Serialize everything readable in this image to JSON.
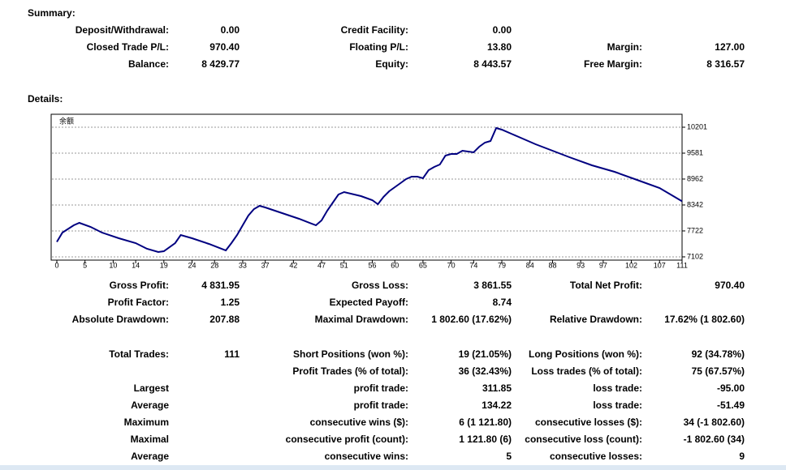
{
  "summary": {
    "title": "Summary:",
    "rows": [
      [
        "Deposit/Withdrawal:",
        "0.00",
        "Credit Facility:",
        "0.00",
        null,
        null
      ],
      [
        "Closed Trade P/L:",
        "970.40",
        "Floating P/L:",
        "13.80",
        "Margin:",
        "127.00"
      ],
      [
        "Balance:",
        "8 429.77",
        "Equity:",
        "8 443.57",
        "Free Margin:",
        "8 316.57"
      ]
    ]
  },
  "details": {
    "title": "Details:",
    "groups": [
      [
        [
          "Gross Profit:",
          "4 831.95",
          "Gross Loss:",
          "3 861.55",
          "Total Net Profit:",
          "970.40"
        ],
        [
          "Profit Factor:",
          "1.25",
          "Expected Payoff:",
          "8.74",
          null,
          null
        ],
        [
          "Absolute Drawdown:",
          "207.88",
          "Maximal Drawdown:",
          "1 802.60 (17.62%)",
          "Relative Drawdown:",
          "17.62% (1 802.60)"
        ]
      ],
      [
        [
          "Total Trades:",
          "111",
          "Short Positions (won %):",
          "19 (21.05%)",
          "Long Positions (won %):",
          "92 (34.78%)"
        ],
        [
          null,
          null,
          "Profit Trades (% of total):",
          "36 (32.43%)",
          "Loss trades (% of total):",
          "75 (67.57%)"
        ],
        [
          "Largest",
          null,
          "profit trade:",
          "311.85",
          "loss trade:",
          "-95.00"
        ],
        [
          "Average",
          null,
          "profit trade:",
          "134.22",
          "loss trade:",
          "-51.49"
        ],
        [
          "Maximum",
          null,
          "consecutive wins ($):",
          "6 (1 121.80)",
          "consecutive losses ($):",
          "34 (-1 802.60)"
        ],
        [
          "Maximal",
          null,
          "consecutive profit (count):",
          "1 121.80 (6)",
          "consecutive loss (count):",
          "-1 802.60 (34)"
        ],
        [
          "Average",
          null,
          "consecutive wins:",
          "5",
          "consecutive losses:",
          "9"
        ]
      ]
    ]
  },
  "chart_data": {
    "type": "line",
    "label": "余额",
    "color": "#000080",
    "grid": true,
    "x": [
      0,
      1,
      3,
      4,
      6,
      8,
      11,
      14,
      16,
      18,
      19,
      21,
      22,
      24,
      27,
      30,
      31,
      32,
      33,
      34,
      35,
      36,
      37,
      40,
      43,
      46,
      47,
      48,
      49,
      50,
      51,
      54,
      56,
      57,
      58,
      59,
      61,
      62,
      63,
      64,
      65,
      66,
      67,
      68,
      69,
      70,
      71,
      72,
      74,
      75,
      76,
      77,
      78,
      79,
      81,
      83,
      85,
      88,
      91,
      95,
      99,
      103,
      107,
      111
    ],
    "values": [
      7459,
      7683,
      7857,
      7916,
      7819,
      7683,
      7547,
      7431,
      7296,
      7218,
      7238,
      7431,
      7625,
      7547,
      7412,
      7257,
      7431,
      7625,
      7857,
      8090,
      8245,
      8322,
      8284,
      8148,
      8012,
      7857,
      7974,
      8206,
      8400,
      8594,
      8652,
      8555,
      8458,
      8361,
      8535,
      8671,
      8865,
      8962,
      9020,
      9020,
      8981,
      9175,
      9252,
      9310,
      9523,
      9562,
      9562,
      9639,
      9601,
      9736,
      9833,
      9872,
      10182,
      10143,
      10027,
      9911,
      9794,
      9639,
      9484,
      9291,
      9136,
      8942,
      8748,
      8430
    ],
    "xlim": [
      0,
      111
    ],
    "ylim": [
      7024,
      10511
    ],
    "xticks": [
      0,
      5,
      10,
      14,
      19,
      24,
      28,
      33,
      37,
      42,
      47,
      51,
      56,
      60,
      65,
      70,
      74,
      79,
      84,
      88,
      93,
      97,
      102,
      107,
      111
    ],
    "yticks": [
      10201,
      9581,
      8962,
      8342,
      7722,
      7102
    ]
  }
}
